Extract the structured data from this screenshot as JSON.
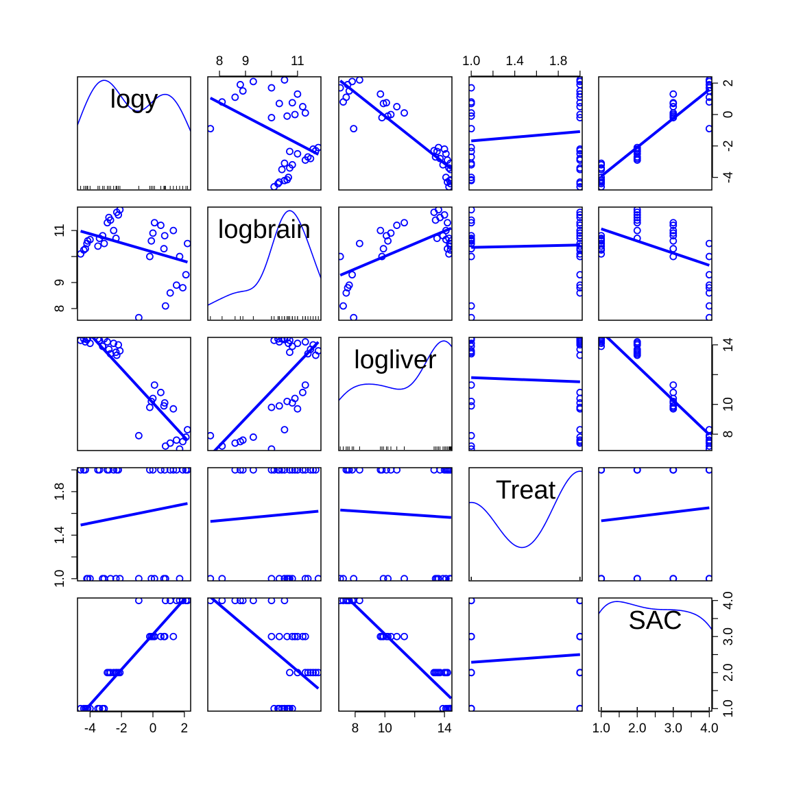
{
  "chart_data": {
    "type": "scatter",
    "subtype": "scatterplot-matrix",
    "title": "",
    "point_color": "#0000ff",
    "line_color": "#0000ff",
    "variables": [
      {
        "name": "logy",
        "range": [
          -4.8,
          2.4
        ],
        "ticks": [
          -4,
          -2,
          0,
          2
        ],
        "tick_labels": [
          "-4",
          "-2",
          "0",
          "2"
        ]
      },
      {
        "name": "logbrain",
        "range": [
          7.55,
          11.9
        ],
        "ticks": [
          8,
          9,
          11
        ],
        "tick_labels": [
          "8",
          "9",
          "11"
        ],
        "minor_ticks": [
          10
        ]
      },
      {
        "name": "logliver",
        "range": [
          6.9,
          14.5
        ],
        "ticks": [
          8,
          10,
          14
        ],
        "tick_labels": [
          "8",
          "10",
          "14"
        ],
        "minor_ticks": [
          12
        ]
      },
      {
        "name": "Treat",
        "range": [
          0.98,
          2.02
        ],
        "ticks": [
          1.0,
          1.4,
          1.8
        ],
        "tick_labels": [
          "1.0",
          "1.4",
          "1.8"
        ],
        "minor_ticks": [
          1.2,
          1.6,
          2.0
        ]
      },
      {
        "name": "SAC",
        "range": [
          0.93,
          4.07
        ],
        "ticks": [
          1.0,
          2.0,
          3.0,
          4.0
        ],
        "tick_labels": [
          "1.0",
          "2.0",
          "3.0",
          "4.0"
        ],
        "minor_ticks": [
          1.5,
          2.5,
          3.5
        ]
      }
    ],
    "axes": {
      "bottom": [
        0,
        2,
        4
      ],
      "top": [
        1,
        3
      ],
      "left": [
        1,
        3
      ],
      "right": [
        0,
        2,
        4
      ]
    },
    "grid": false,
    "legend": "none",
    "observations": [
      {
        "logy": -4.6,
        "logbrain": 10.1,
        "logliver": 14.3,
        "Treat": 2,
        "SAC": 1
      },
      {
        "logy": -4.4,
        "logbrain": 10.25,
        "logliver": 14.4,
        "Treat": 2,
        "SAC": 1
      },
      {
        "logy": -4.3,
        "logbrain": 10.3,
        "logliver": 14.2,
        "Treat": 2,
        "SAC": 1
      },
      {
        "logy": -4.2,
        "logbrain": 10.5,
        "logliver": 14.35,
        "Treat": 1,
        "SAC": 1
      },
      {
        "logy": -4.15,
        "logbrain": 10.6,
        "logliver": 14.45,
        "Treat": 1,
        "SAC": 1
      },
      {
        "logy": -4.0,
        "logbrain": 10.65,
        "logliver": 14.1,
        "Treat": 1,
        "SAC": 1
      },
      {
        "logy": -3.5,
        "logbrain": 10.4,
        "logliver": 14.4,
        "Treat": 2,
        "SAC": 1
      },
      {
        "logy": -3.4,
        "logbrain": 10.7,
        "logliver": 14.3,
        "Treat": 2,
        "SAC": 1
      },
      {
        "logy": -3.2,
        "logbrain": 10.8,
        "logliver": 13.9,
        "Treat": 1,
        "SAC": 1
      },
      {
        "logy": -3.1,
        "logbrain": 10.5,
        "logliver": 14.4,
        "Treat": 1,
        "SAC": 1
      },
      {
        "logy": -2.9,
        "logbrain": 11.3,
        "logliver": 14.2,
        "Treat": 2,
        "SAC": 2
      },
      {
        "logy": -2.8,
        "logbrain": 11.5,
        "logliver": 13.7,
        "Treat": 2,
        "SAC": 2
      },
      {
        "logy": -2.7,
        "logbrain": 11.4,
        "logliver": 13.4,
        "Treat": 1,
        "SAC": 2
      },
      {
        "logy": -2.5,
        "logbrain": 11.0,
        "logliver": 14.1,
        "Treat": 2,
        "SAC": 2
      },
      {
        "logy": -2.35,
        "logbrain": 10.7,
        "logliver": 13.5,
        "Treat": 1,
        "SAC": 2
      },
      {
        "logy": -2.3,
        "logbrain": 11.7,
        "logliver": 13.3,
        "Treat": 2,
        "SAC": 2
      },
      {
        "logy": -2.2,
        "logbrain": 11.6,
        "logliver": 14.0,
        "Treat": 2,
        "SAC": 2
      },
      {
        "logy": -2.1,
        "logbrain": 11.8,
        "logliver": 13.6,
        "Treat": 1,
        "SAC": 2
      },
      {
        "logy": -0.9,
        "logbrain": 7.65,
        "logliver": 7.9,
        "Treat": 1,
        "SAC": 4
      },
      {
        "logy": -0.2,
        "logbrain": 10.0,
        "logliver": 9.8,
        "Treat": 2,
        "SAC": 3
      },
      {
        "logy": -0.1,
        "logbrain": 10.6,
        "logliver": 10.2,
        "Treat": 1,
        "SAC": 3
      },
      {
        "logy": 0.0,
        "logbrain": 10.9,
        "logliver": 10.4,
        "Treat": 2,
        "SAC": 3
      },
      {
        "logy": 0.1,
        "logbrain": 11.3,
        "logliver": 11.3,
        "Treat": 1,
        "SAC": 3
      },
      {
        "logy": 0.5,
        "logbrain": 11.2,
        "logliver": 10.8,
        "Treat": 2,
        "SAC": 3
      },
      {
        "logy": 0.7,
        "logbrain": 10.3,
        "logliver": 9.9,
        "Treat": 1,
        "SAC": 3
      },
      {
        "logy": 0.75,
        "logbrain": 10.8,
        "logliver": 10.1,
        "Treat": 2,
        "SAC": 3
      },
      {
        "logy": 0.8,
        "logbrain": 8.1,
        "logliver": 7.2,
        "Treat": 1,
        "SAC": 4
      },
      {
        "logy": 1.1,
        "logbrain": 8.6,
        "logliver": 7.4,
        "Treat": 2,
        "SAC": 4
      },
      {
        "logy": 1.3,
        "logbrain": 11.0,
        "logliver": 9.7,
        "Treat": 2,
        "SAC": 3
      },
      {
        "logy": 1.5,
        "logbrain": 8.9,
        "logliver": 7.6,
        "Treat": 2,
        "SAC": 4
      },
      {
        "logy": 1.7,
        "logbrain": 10.0,
        "logliver": 7.0,
        "Treat": 1,
        "SAC": 4
      },
      {
        "logy": 1.9,
        "logbrain": 8.8,
        "logliver": 7.5,
        "Treat": 2,
        "SAC": 4
      },
      {
        "logy": 2.1,
        "logbrain": 9.3,
        "logliver": 7.8,
        "Treat": 2,
        "SAC": 4
      },
      {
        "logy": 2.2,
        "logbrain": 10.5,
        "logliver": 8.3,
        "Treat": 2,
        "SAC": 4
      }
    ]
  }
}
